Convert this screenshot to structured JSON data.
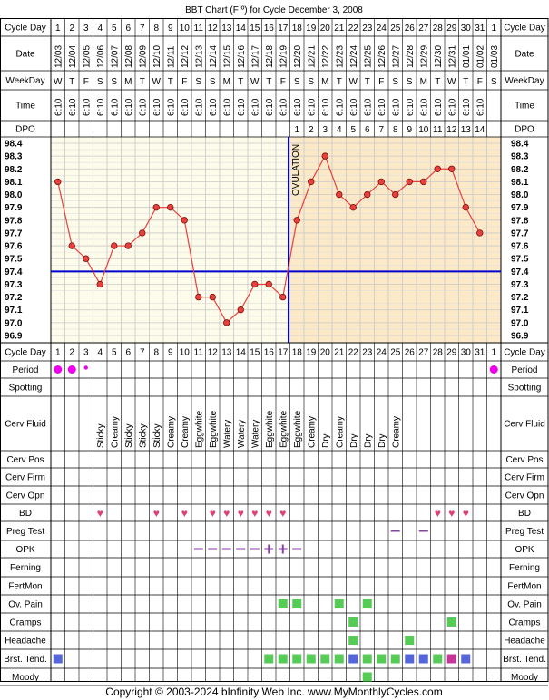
{
  "title": "BBT Chart (F º) for Cycle December 3, 2008",
  "footer": "Copyright © 2003-2024 bInfinity Web Inc.    www.MyMonthlyCycles.com",
  "row_labels": {
    "cycle_day": "Cycle Day",
    "date": "Date",
    "weekday": "WeekDay",
    "time": "Time",
    "dpo": "DPO",
    "period": "Period",
    "spotting": "Spotting",
    "cerv_fluid": "Cerv Fluid",
    "cerv_pos": "Cerv Pos",
    "cerv_firm": "Cerv Firm",
    "cerv_opn": "Cerv Opn",
    "bd": "BD",
    "preg_test": "Preg Test",
    "opk": "OPK",
    "ferning": "Ferning",
    "fertmon": "FertMon",
    "ov_pain": "Ov. Pain",
    "cramps": "Cramps",
    "headache": "Headache",
    "brst_tend": "Brst. Tend.",
    "moody": "Moody"
  },
  "colors": {
    "pre_ovulation_bg": "#fdfbe9",
    "post_ovulation_bg": "#fbe9c8",
    "grid": "#c9c9c9",
    "line": "#e8403c",
    "point_fill": "#e8403c",
    "coverline": "#0000cc",
    "ovulation_line": "#0000cc",
    "period_dot": "#ee00ee",
    "heart": "#e0407a",
    "opk": "#8a3fa8",
    "symptom_green": "#55cc55",
    "symptom_blue": "#5566dd",
    "symptom_magenta": "#cc3399"
  },
  "ovulation_label": "OVULATION",
  "chart_data": {
    "type": "line",
    "title": "BBT Chart (F º) for Cycle December 3, 2008",
    "y_ticks": [
      "98.4",
      "98.3",
      "98.2",
      "98.1",
      "98.0",
      "97.9",
      "97.8",
      "97.7",
      "97.6",
      "97.5",
      "97.4",
      "97.3",
      "97.2",
      "97.1",
      "97.0",
      "96.9"
    ],
    "ylim": [
      96.9,
      98.4
    ],
    "coverline": 97.4,
    "ovulation_day": 17,
    "cycle_days": [
      "1",
      "2",
      "3",
      "4",
      "5",
      "6",
      "7",
      "8",
      "9",
      "10",
      "11",
      "12",
      "13",
      "14",
      "15",
      "16",
      "17",
      "18",
      "19",
      "20",
      "21",
      "22",
      "23",
      "24",
      "25",
      "26",
      "27",
      "28",
      "29",
      "30",
      "31",
      "1"
    ],
    "dates": [
      "12/03",
      "12/04",
      "12/05",
      "12/06",
      "12/07",
      "12/08",
      "12/09",
      "12/10",
      "12/11",
      "12/12",
      "12/13",
      "12/14",
      "12/15",
      "12/16",
      "12/17",
      "12/18",
      "12/19",
      "12/20",
      "12/21",
      "12/22",
      "12/23",
      "12/24",
      "12/25",
      "12/26",
      "12/27",
      "12/28",
      "12/29",
      "12/30",
      "12/31",
      "01/01",
      "01/02",
      "01/03"
    ],
    "weekdays": [
      "W",
      "T",
      "F",
      "S",
      "S",
      "M",
      "T",
      "W",
      "T",
      "F",
      "S",
      "S",
      "M",
      "T",
      "W",
      "T",
      "F",
      "S",
      "S",
      "M",
      "T",
      "W",
      "T",
      "F",
      "S",
      "S",
      "M",
      "T",
      "W",
      "T",
      "F",
      "S"
    ],
    "times": [
      "6:10",
      "6:10",
      "6:10",
      "6:10",
      "6:10",
      "6:10",
      "6:10",
      "6:10",
      "6:10",
      "6:10",
      "6:10",
      "6:10",
      "6:10",
      "6:10",
      "6:10",
      "6:10",
      "6:10",
      "6:10",
      "6:10",
      "6:10",
      "6:10",
      "6:10",
      "6:10",
      "6:10",
      "6:10",
      "6:10",
      "6:10",
      "6:10",
      "6:10",
      "6:10",
      "6:10",
      ""
    ],
    "dpo": [
      "",
      "",
      "",
      "",
      "",
      "",
      "",
      "",
      "",
      "",
      "",
      "",
      "",
      "",
      "",
      "",
      "",
      "1",
      "2",
      "3",
      "4",
      "5",
      "6",
      "7",
      "8",
      "9",
      "10",
      "11",
      "12",
      "13",
      "14",
      ""
    ],
    "temperatures": [
      98.1,
      97.6,
      97.5,
      97.3,
      97.6,
      97.6,
      97.7,
      97.9,
      97.9,
      97.8,
      97.2,
      97.2,
      97.0,
      97.1,
      97.3,
      97.3,
      97.2,
      97.8,
      98.1,
      98.3,
      98.0,
      97.9,
      98.0,
      98.1,
      98.0,
      98.1,
      98.1,
      98.2,
      98.2,
      97.9,
      97.7,
      null
    ],
    "cerv_fluid": [
      "",
      "",
      "",
      "Sticky",
      "Creamy",
      "Sticky",
      "Sticky",
      "Sticky",
      "Creamy",
      "Creamy",
      "Eggwhite",
      "Eggwhite",
      "Watery",
      "Watery",
      "Watery",
      "Eggwhite",
      "Eggwhite",
      "Eggwhite",
      "Creamy",
      "Dry",
      "Creamy",
      "Dry",
      "Dry",
      "Dry",
      "Creamy",
      "",
      "",
      "",
      "",
      "",
      "",
      ""
    ],
    "period": [
      "dot",
      "dot",
      "small",
      "",
      "",
      "",
      "",
      "",
      "",
      "",
      "",
      "",
      "",
      "",
      "",
      "",
      "",
      "",
      "",
      "",
      "",
      "",
      "",
      "",
      "",
      "",
      "",
      "",
      "",
      "",
      "",
      "dot"
    ],
    "bd": [
      4,
      8,
      10,
      12,
      13,
      14,
      15,
      16,
      17,
      28,
      29,
      30
    ],
    "preg_test": [
      25,
      27
    ],
    "opk": [
      "",
      "",
      "",
      "",
      "",
      "",
      "",
      "",
      "",
      "",
      "neg",
      "neg",
      "neg",
      "neg",
      "neg",
      "pos",
      "pos",
      "neg",
      "",
      "",
      "",
      "",
      "",
      "",
      "",
      "",
      "",
      "",
      "",
      "",
      "",
      ""
    ],
    "ov_pain": [
      17,
      18,
      21,
      23
    ],
    "cramps": [
      22,
      29
    ],
    "headache": [
      22,
      26
    ],
    "brst_tend_blue": [
      1,
      22,
      26,
      27,
      30
    ],
    "brst_tend_green": [
      16,
      17,
      18,
      19,
      20,
      21,
      23,
      24,
      25,
      28
    ],
    "brst_tend_magenta": [
      29
    ],
    "moody": [
      23
    ]
  }
}
